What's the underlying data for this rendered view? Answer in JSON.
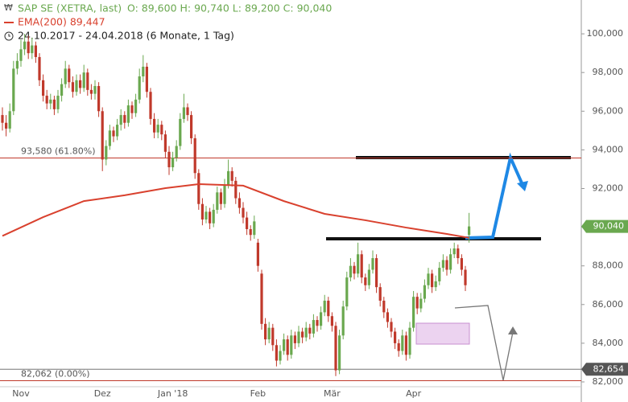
{
  "chart_data": {
    "type": "candlestick",
    "title": "SAP SE (XETRA, last)",
    "ohlc_label": "O: 89,600  H: 90,740  L: 89,200  C: 90,040",
    "ema_label": "EMA(200)  89,447",
    "range_label": "24.10.2017 - 24.04.2018  (6 Monate, 1 Tag)",
    "up_color": "#6aa84f",
    "down_color": "#c0392b",
    "ema_color": "#d9412e",
    "ylim": [
      80.96,
      101.75
    ],
    "yticks": [
      {
        "value": 82,
        "label": "82,000"
      },
      {
        "value": 84,
        "label": "84,000"
      },
      {
        "value": 86,
        "label": "86,000"
      },
      {
        "value": 88,
        "label": "88,000"
      },
      {
        "value": 90,
        "label": "90,000"
      },
      {
        "value": 92,
        "label": "92,000"
      },
      {
        "value": 94,
        "label": "94,000"
      },
      {
        "value": 96,
        "label": "96,000"
      },
      {
        "value": 98,
        "label": "98,000"
      },
      {
        "value": 100,
        "label": "100,000"
      }
    ],
    "grid": false,
    "categories": [
      null,
      null,
      null,
      null,
      null,
      "Nov",
      null,
      null,
      null,
      null,
      null,
      null,
      null,
      null,
      null,
      null,
      null,
      null,
      null,
      null,
      null,
      null,
      null,
      null,
      null,
      null,
      null,
      "Dez",
      null,
      null,
      null,
      null,
      null,
      null,
      null,
      null,
      null,
      null,
      null,
      null,
      null,
      null,
      null,
      null,
      null,
      null,
      "Jan '18",
      null,
      null,
      null,
      null,
      null,
      null,
      null,
      null,
      null,
      null,
      null,
      null,
      null,
      null,
      null,
      null,
      null,
      null,
      null,
      null,
      null,
      null,
      "Feb",
      null,
      null,
      null,
      null,
      null,
      null,
      null,
      null,
      null,
      null,
      null,
      null,
      null,
      null,
      null,
      null,
      null,
      null,
      null,
      "Mär",
      null,
      null,
      null,
      null,
      null,
      null,
      null,
      null,
      null,
      null,
      null,
      null,
      null,
      null,
      null,
      null,
      null,
      null,
      null,
      null,
      null,
      "Apr",
      null,
      null,
      null,
      null,
      null,
      null,
      null,
      null,
      null,
      null,
      null,
      null,
      null,
      null,
      null
    ],
    "candles": [
      [
        95.8,
        96.2,
        95.0,
        95.4
      ],
      [
        95.4,
        95.8,
        94.7,
        95.1
      ],
      [
        95.1,
        96.4,
        94.9,
        96.0
      ],
      [
        96.0,
        98.6,
        95.8,
        98.2
      ],
      [
        98.2,
        99.0,
        97.9,
        98.6
      ],
      [
        98.6,
        99.7,
        98.3,
        99.2
      ],
      [
        99.2,
        100.0,
        98.9,
        99.6
      ],
      [
        99.6,
        99.9,
        98.7,
        99.0
      ],
      [
        99.0,
        99.8,
        98.7,
        99.4
      ],
      [
        99.4,
        99.6,
        98.5,
        98.8
      ],
      [
        98.8,
        99.0,
        97.3,
        97.6
      ],
      [
        97.6,
        97.9,
        96.5,
        96.8
      ],
      [
        96.8,
        97.1,
        96.1,
        96.4
      ],
      [
        96.4,
        96.9,
        96.1,
        96.6
      ],
      [
        96.6,
        96.8,
        95.8,
        96.1
      ],
      [
        96.1,
        97.1,
        95.9,
        96.8
      ],
      [
        96.8,
        97.7,
        96.5,
        97.4
      ],
      [
        97.4,
        98.6,
        97.2,
        98.2
      ],
      [
        98.2,
        98.4,
        97.2,
        97.5
      ],
      [
        97.5,
        97.8,
        96.7,
        97.0
      ],
      [
        97.0,
        97.9,
        96.8,
        97.6
      ],
      [
        97.6,
        97.9,
        96.9,
        97.2
      ],
      [
        97.2,
        98.4,
        97.0,
        98.0
      ],
      [
        98.0,
        98.2,
        96.8,
        97.1
      ],
      [
        97.1,
        97.4,
        96.6,
        96.9
      ],
      [
        96.9,
        97.6,
        96.6,
        97.3
      ],
      [
        97.3,
        97.5,
        95.7,
        96.0
      ],
      [
        96.0,
        96.2,
        92.9,
        93.5
      ],
      [
        93.5,
        94.5,
        93.2,
        94.2
      ],
      [
        94.2,
        95.3,
        94.0,
        95.0
      ],
      [
        95.0,
        95.2,
        94.4,
        94.7
      ],
      [
        94.7,
        95.6,
        94.5,
        95.3
      ],
      [
        95.3,
        96.1,
        95.0,
        95.8
      ],
      [
        95.8,
        96.0,
        95.1,
        95.4
      ],
      [
        95.4,
        96.6,
        95.2,
        96.3
      ],
      [
        96.3,
        96.5,
        95.6,
        95.9
      ],
      [
        95.9,
        96.9,
        95.7,
        96.6
      ],
      [
        96.6,
        98.2,
        96.4,
        97.8
      ],
      [
        97.8,
        98.9,
        97.5,
        98.3
      ],
      [
        98.3,
        98.5,
        96.7,
        97.0
      ],
      [
        97.0,
        97.2,
        95.3,
        95.6
      ],
      [
        95.6,
        95.9,
        94.6,
        94.9
      ],
      [
        94.9,
        95.6,
        94.6,
        95.3
      ],
      [
        95.3,
        95.5,
        94.5,
        94.8
      ],
      [
        94.8,
        95.0,
        93.6,
        93.9
      ],
      [
        93.9,
        94.2,
        92.7,
        93.1
      ],
      [
        93.1,
        93.9,
        92.9,
        93.6
      ],
      [
        93.6,
        94.5,
        93.4,
        94.2
      ],
      [
        94.2,
        95.9,
        94.0,
        95.6
      ],
      [
        95.6,
        96.9,
        95.4,
        96.2
      ],
      [
        96.2,
        96.4,
        95.5,
        95.8
      ],
      [
        95.8,
        96.0,
        94.3,
        94.6
      ],
      [
        94.6,
        94.8,
        92.5,
        92.8
      ],
      [
        92.8,
        93.0,
        90.9,
        91.2
      ],
      [
        91.2,
        91.5,
        90.1,
        90.4
      ],
      [
        90.4,
        91.1,
        90.2,
        90.8
      ],
      [
        90.8,
        91.0,
        89.9,
        90.2
      ],
      [
        90.2,
        91.2,
        90.0,
        90.9
      ],
      [
        90.9,
        92.1,
        90.7,
        91.8
      ],
      [
        91.8,
        92.0,
        90.9,
        91.2
      ],
      [
        91.2,
        92.5,
        91.0,
        92.2
      ],
      [
        92.2,
        93.5,
        92.0,
        92.9
      ],
      [
        92.9,
        93.1,
        92.1,
        92.4
      ],
      [
        92.4,
        92.6,
        91.2,
        91.5
      ],
      [
        91.5,
        91.8,
        90.7,
        91.0
      ],
      [
        91.0,
        91.3,
        90.2,
        90.5
      ],
      [
        90.5,
        90.8,
        89.6,
        89.9
      ],
      [
        89.9,
        90.1,
        89.3,
        89.6
      ],
      [
        89.6,
        90.6,
        89.4,
        90.3
      ],
      [
        89.2,
        89.4,
        87.7,
        88.0
      ],
      [
        87.6,
        87.8,
        84.7,
        85.0
      ],
      [
        85.0,
        85.3,
        83.9,
        84.2
      ],
      [
        84.2,
        85.1,
        84.0,
        84.8
      ],
      [
        84.8,
        85.0,
        83.6,
        83.9
      ],
      [
        83.9,
        84.2,
        82.8,
        83.1
      ],
      [
        83.1,
        83.9,
        82.9,
        83.6
      ],
      [
        83.6,
        84.5,
        83.4,
        84.2
      ],
      [
        84.2,
        84.4,
        83.1,
        83.4
      ],
      [
        83.4,
        84.7,
        83.2,
        84.4
      ],
      [
        84.4,
        84.6,
        83.7,
        84.0
      ],
      [
        84.0,
        84.9,
        83.8,
        84.6
      ],
      [
        84.6,
        84.8,
        84.0,
        84.3
      ],
      [
        84.3,
        85.1,
        84.1,
        84.8
      ],
      [
        84.8,
        85.0,
        84.2,
        84.5
      ],
      [
        84.5,
        85.5,
        84.3,
        85.2
      ],
      [
        85.2,
        85.4,
        84.6,
        84.9
      ],
      [
        84.9,
        85.9,
        84.7,
        85.6
      ],
      [
        85.6,
        86.5,
        85.4,
        86.2
      ],
      [
        86.2,
        86.4,
        85.1,
        85.4
      ],
      [
        85.4,
        85.6,
        84.6,
        84.9
      ],
      [
        84.9,
        85.1,
        82.3,
        82.6
      ],
      [
        82.6,
        84.7,
        82.4,
        84.4
      ],
      [
        84.4,
        86.2,
        84.2,
        85.9
      ],
      [
        85.9,
        87.7,
        85.7,
        87.4
      ],
      [
        87.4,
        88.4,
        87.2,
        88.0
      ],
      [
        88.0,
        88.2,
        87.3,
        87.6
      ],
      [
        87.6,
        89.2,
        87.4,
        88.6
      ],
      [
        88.6,
        88.8,
        87.1,
        87.4
      ],
      [
        87.4,
        87.6,
        86.7,
        87.0
      ],
      [
        87.0,
        88.1,
        86.8,
        87.8
      ],
      [
        87.8,
        88.8,
        87.6,
        88.4
      ],
      [
        88.4,
        88.6,
        86.6,
        86.9
      ],
      [
        86.9,
        87.1,
        85.9,
        86.2
      ],
      [
        86.2,
        86.4,
        85.3,
        85.6
      ],
      [
        85.6,
        85.8,
        84.8,
        85.1
      ],
      [
        85.1,
        85.3,
        84.3,
        84.6
      ],
      [
        84.6,
        84.8,
        83.7,
        84.0
      ],
      [
        84.0,
        84.2,
        83.3,
        83.6
      ],
      [
        83.6,
        84.7,
        83.4,
        84.4
      ],
      [
        84.4,
        84.6,
        83.1,
        83.4
      ],
      [
        83.4,
        85.1,
        83.2,
        84.8
      ],
      [
        84.8,
        86.7,
        84.6,
        86.4
      ],
      [
        86.4,
        86.6,
        85.5,
        85.8
      ],
      [
        85.8,
        86.6,
        85.6,
        86.3
      ],
      [
        86.3,
        87.3,
        86.1,
        87.0
      ],
      [
        87.0,
        87.9,
        86.8,
        87.6
      ],
      [
        87.6,
        87.8,
        86.6,
        86.9
      ],
      [
        86.9,
        87.5,
        86.7,
        87.2
      ],
      [
        87.2,
        88.2,
        87.0,
        87.9
      ],
      [
        87.9,
        88.6,
        87.7,
        88.3
      ],
      [
        88.3,
        88.5,
        87.5,
        87.8
      ],
      [
        87.8,
        88.9,
        87.6,
        88.6
      ],
      [
        88.6,
        89.2,
        88.4,
        88.9
      ],
      [
        88.9,
        89.1,
        88.1,
        88.4
      ],
      [
        88.4,
        88.6,
        87.5,
        87.8
      ],
      [
        87.8,
        88.0,
        86.7,
        87.0
      ],
      [
        89.6,
        90.74,
        89.2,
        90.04
      ]
    ],
    "ema": {
      "x": [
        0,
        11,
        22,
        33,
        44,
        53,
        65,
        76,
        87,
        98,
        109,
        120,
        126
      ],
      "values": [
        89.55,
        90.52,
        91.35,
        91.65,
        92.02,
        92.23,
        92.15,
        91.35,
        90.69,
        90.36,
        89.98,
        89.65,
        89.45
      ]
    },
    "levels": [
      {
        "value": 93.58,
        "label": "93,580 (61.80%)",
        "color": "#c0392b"
      },
      {
        "value": 82.062,
        "label": "82,062 (0.00%)",
        "color": "#c0392b"
      }
    ],
    "last_price": {
      "value": 90.04,
      "label": "90,040",
      "color": "#6aa84f"
    },
    "marker_price": {
      "value": 82.654,
      "label": "82,654",
      "color": "#555555"
    }
  }
}
